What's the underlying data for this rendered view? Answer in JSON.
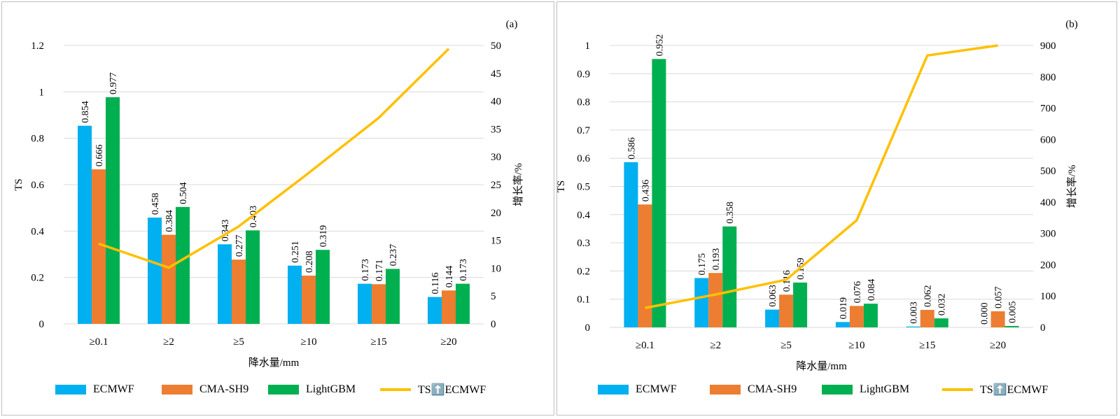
{
  "chart_data": [
    {
      "type": "bar",
      "panel_tag": "(a)",
      "categories": [
        "≥0.1",
        "≥2",
        "≥5",
        "≥10",
        "≥15",
        "≥20"
      ],
      "series": [
        {
          "name": "ECMWF",
          "color": "#00b0f0",
          "values": [
            0.854,
            0.458,
            0.343,
            0.251,
            0.173,
            0.116
          ],
          "labels": [
            "0.854",
            "0.458",
            "0.343",
            "0.251",
            "0.173",
            "0.116"
          ]
        },
        {
          "name": "CMA-SH9",
          "color": "#ed7d31",
          "values": [
            0.666,
            0.384,
            0.277,
            0.208,
            0.171,
            0.144
          ],
          "labels": [
            "0.666",
            "0.384",
            "0.277",
            "0.208",
            "0.171",
            "0.144"
          ]
        },
        {
          "name": "LightGBM",
          "color": "#00b050",
          "values": [
            0.977,
            0.504,
            0.403,
            0.319,
            0.237,
            0.173
          ],
          "labels": [
            "0.977",
            "0.504",
            "0.403",
            "0.319",
            "0.237",
            "0.173"
          ]
        }
      ],
      "line_series": {
        "name": "TS⬆️ECMWF",
        "color": "#ffc000",
        "axis": "right",
        "values": [
          14.4,
          10.1,
          17.5,
          27.1,
          37.0,
          49.4
        ]
      },
      "xlabel": "降水量/mm",
      "ylabel": "TS",
      "y2label": "增长率/%",
      "ylim": [
        0,
        1.2
      ],
      "yticks": [
        "0",
        "0.2",
        "0.4",
        "0.6",
        "0.8",
        "1",
        "1.2"
      ],
      "y2lim": [
        0,
        50
      ],
      "y2ticks": [
        "0",
        "5",
        "10",
        "15",
        "20",
        "25",
        "30",
        "35",
        "40",
        "45",
        "50"
      ],
      "grid": true,
      "legend": "bottom"
    },
    {
      "type": "bar",
      "panel_tag": "(b)",
      "categories": [
        "≥0.1",
        "≥2",
        "≥5",
        "≥10",
        "≥15",
        "≥20"
      ],
      "series": [
        {
          "name": "ECMWF",
          "color": "#00b0f0",
          "values": [
            0.586,
            0.175,
            0.063,
            0.019,
            0.003,
            0.0
          ],
          "labels": [
            "0.586",
            "0.175",
            "0.063",
            "0.019",
            "0.003",
            "0.000"
          ]
        },
        {
          "name": "CMA-SH9",
          "color": "#ed7d31",
          "values": [
            0.436,
            0.193,
            0.116,
            0.076,
            0.062,
            0.057
          ],
          "labels": [
            "0.436",
            "0.193",
            "0.116",
            "0.076",
            "0.062",
            "0.057"
          ]
        },
        {
          "name": "LightGBM",
          "color": "#00b050",
          "values": [
            0.952,
            0.358,
            0.159,
            0.084,
            0.032,
            0.005
          ],
          "labels": [
            "0.952",
            "0.358",
            "0.159",
            "0.084",
            "0.032",
            "0.005"
          ]
        }
      ],
      "line_series": {
        "name": "TS⬆️ECMWF",
        "color": "#ffc000",
        "axis": "right",
        "values": [
          62,
          105,
          152,
          342,
          868,
          900
        ]
      },
      "xlabel": "降水量/mm",
      "ylabel": "TS",
      "y2label": "增长率/%",
      "ylim": [
        0,
        1
      ],
      "yticks": [
        "0",
        "0.1",
        "0.2",
        "0.3",
        "0.4",
        "0.5",
        "0.6",
        "0.7",
        "0.8",
        "0.9",
        "1"
      ],
      "y2lim": [
        0,
        900
      ],
      "y2ticks": [
        "0",
        "100",
        "200",
        "300",
        "400",
        "500",
        "600",
        "700",
        "800",
        "900"
      ],
      "grid": true,
      "legend": "bottom"
    }
  ]
}
